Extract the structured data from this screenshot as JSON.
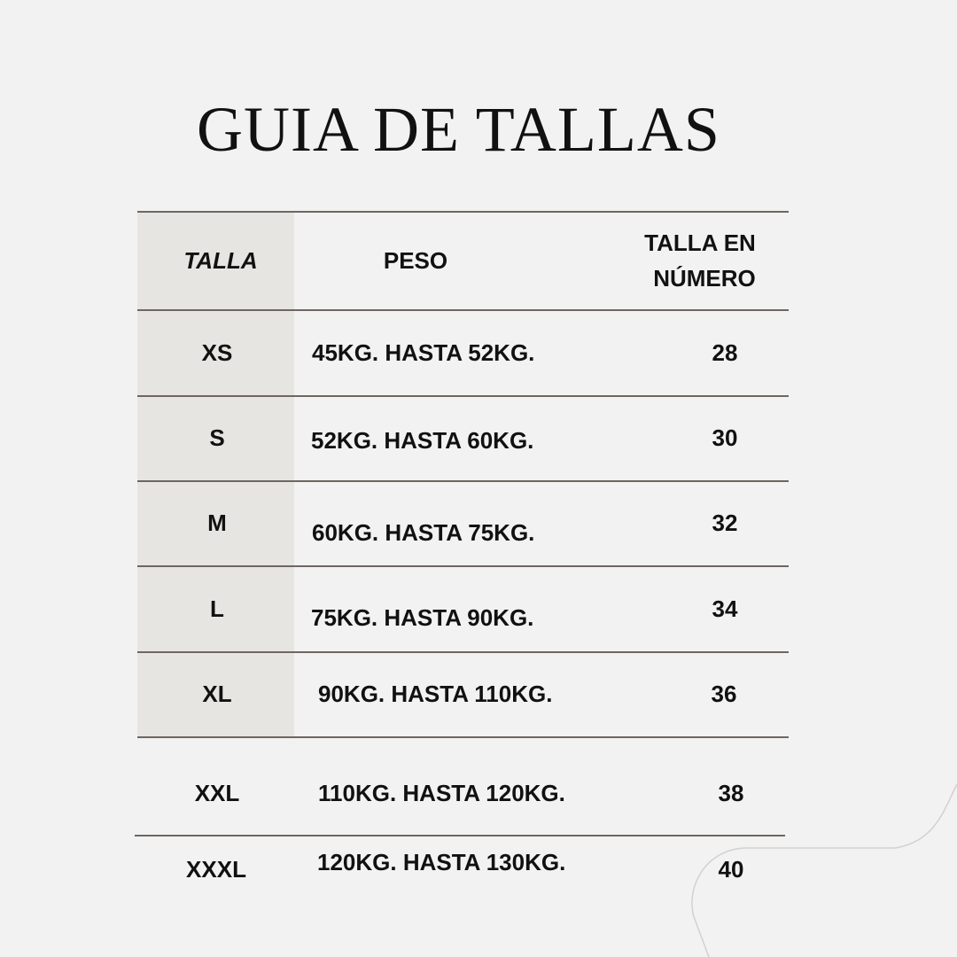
{
  "title": "GUIA DE TALLAS",
  "headers": {
    "talla": "TALLA",
    "peso": "PESO",
    "numero_line1": "TALLA EN",
    "numero_line2": "NÚMERO"
  },
  "rows": [
    {
      "talla": "XS",
      "peso": "45KG. HASTA 52KG.",
      "numero": "28"
    },
    {
      "talla": "S",
      "peso": "52KG. HASTA 60KG.",
      "numero": "30"
    },
    {
      "talla": "M",
      "peso": "60KG. HASTA 75KG.",
      "numero": "32"
    },
    {
      "talla": "L",
      "peso": "75KG. HASTA 90KG.",
      "numero": "34"
    },
    {
      "talla": "XL",
      "peso": "90KG. HASTA 110KG.",
      "numero": "36"
    },
    {
      "talla": "XXL",
      "peso": "110KG. HASTA 120KG.",
      "numero": "38"
    },
    {
      "talla": "XXXL",
      "peso": "120KG. HASTA 130KG.",
      "numero": "40"
    }
  ],
  "colors": {
    "background": "#f2f2f2",
    "shade": "#e7e5e1",
    "rule": "#6e6662",
    "decor": "#d5d0cc"
  }
}
